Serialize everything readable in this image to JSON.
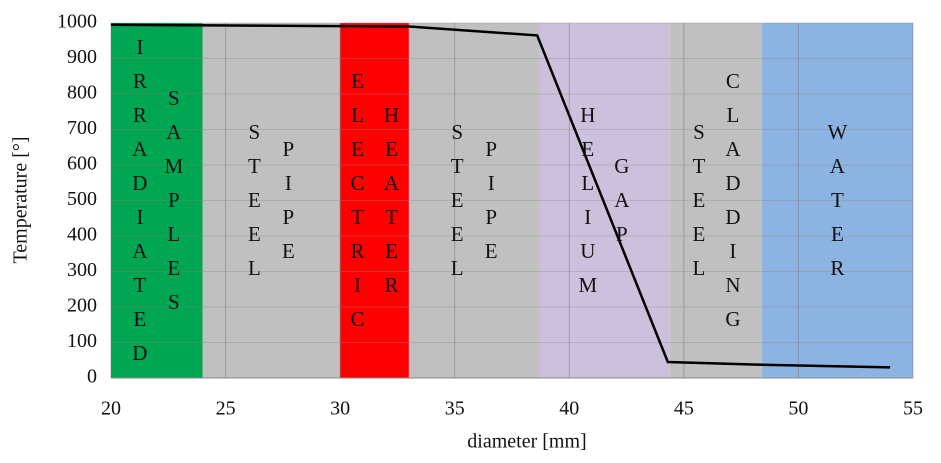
{
  "chart_data": {
    "type": "line",
    "x_label": "diameter [mm]",
    "y_label": "Temperature [°]",
    "xlim": [
      20,
      55
    ],
    "xticks": [
      20,
      25,
      30,
      35,
      40,
      45,
      50,
      55
    ],
    "ylim": [
      0,
      1000
    ],
    "yticks": [
      0,
      100,
      200,
      300,
      400,
      500,
      600,
      700,
      800,
      900,
      1000
    ],
    "grid": true,
    "x": [
      20,
      33,
      38.6,
      44.3,
      48,
      54
    ],
    "series": [
      {
        "color": "#000000",
        "values": [
          995,
          990,
          965,
          45,
          38,
          30
        ]
      }
    ],
    "regions": [
      {
        "label": [
          "IRRADIATED",
          "SAMPLES"
        ],
        "start": 20,
        "end": 24,
        "color": "#00a651"
      },
      {
        "label": [
          "STEEL",
          "PIPE"
        ],
        "start": 24,
        "end": 30,
        "color": "#c0c0c0"
      },
      {
        "label": [
          "ELECTRIC",
          "HEATER"
        ],
        "start": 30,
        "end": 33,
        "color": "#ff0000"
      },
      {
        "label": [
          "STEEL",
          "PIPE"
        ],
        "start": 33,
        "end": 38.7,
        "color": "#c0c0c0"
      },
      {
        "label": [
          "HELIUM",
          "GAP"
        ],
        "start": 38.7,
        "end": 44.4,
        "color": "#cdc0dd"
      },
      {
        "label": [
          "STEEL",
          "CLADDING"
        ],
        "start": 44.4,
        "end": 48.4,
        "color": "#c0c0c0"
      },
      {
        "label": [
          "WATER"
        ],
        "start": 48.4,
        "end": 55,
        "color": "#8db3e2"
      }
    ]
  }
}
